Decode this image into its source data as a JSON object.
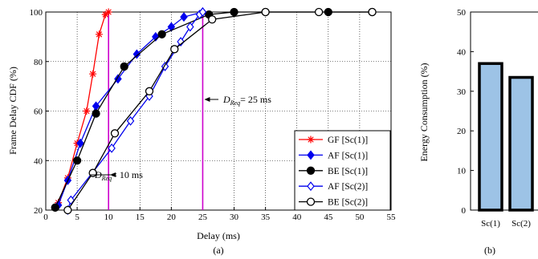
{
  "chart_data": [
    {
      "type": "line",
      "panel_label": "(a)",
      "xlabel": "Delay (ms)",
      "ylabel": "Frame Delay CDF (%)",
      "xlim": [
        0,
        55
      ],
      "ylim": [
        20,
        100
      ],
      "xticks": [
        "0",
        "5",
        "10",
        "15",
        "20",
        "25",
        "30",
        "35",
        "40",
        "45",
        "50",
        "55"
      ],
      "yticks": [
        "20",
        "40",
        "60",
        "80",
        "100"
      ],
      "grid": true,
      "legend_position": "bottom-right",
      "annotations": [
        {
          "prefix": "D",
          "sub": "Req",
          "text": "= 10 ms",
          "x": 10
        },
        {
          "prefix": "D",
          "sub": "Req",
          "text": "= 25 ms",
          "x": 25
        }
      ],
      "vlines": [
        {
          "x": 10,
          "color": "#cc00cc"
        },
        {
          "x": 25,
          "color": "#cc00cc"
        }
      ],
      "series": [
        {
          "name": "GF [Sc(1)]",
          "color": "#ff0000",
          "marker": "star",
          "filled": false,
          "x": [
            2,
            3.5,
            5,
            6.5,
            7.5,
            8.5,
            9.5,
            10
          ],
          "y": [
            23,
            33,
            47,
            60,
            75,
            91,
            99,
            100
          ]
        },
        {
          "name": "AF [Sc(1)]",
          "color": "#0000ee",
          "marker": "diamond",
          "filled": true,
          "x": [
            2,
            3.5,
            5.5,
            8,
            11.5,
            14.5,
            17.5,
            20,
            22,
            25
          ],
          "y": [
            22,
            32,
            47,
            62,
            73,
            83,
            90,
            94,
            98,
            100
          ]
        },
        {
          "name": "BE [Sc(1)]",
          "color": "#000000",
          "marker": "circle",
          "filled": true,
          "x": [
            1.5,
            5,
            8,
            12.5,
            18.5,
            26,
            30,
            35,
            45,
            52
          ],
          "y": [
            21,
            40,
            59,
            78,
            91,
            99,
            100,
            100,
            100,
            100
          ]
        },
        {
          "name": "AF [Sc(2)]",
          "color": "#0000ee",
          "marker": "diamond",
          "filled": false,
          "x": [
            3.5,
            4,
            10.5,
            13.5,
            16.5,
            19,
            21.5,
            23,
            24.5,
            25
          ],
          "y": [
            20,
            24,
            45,
            56,
            66,
            78,
            88,
            94,
            99,
            100
          ]
        },
        {
          "name": "BE [Sc(2)]",
          "color": "#000000",
          "marker": "circle",
          "filled": false,
          "x": [
            3.5,
            7.5,
            11,
            16.5,
            20.5,
            26.5,
            35,
            43.5,
            52
          ],
          "y": [
            20,
            35,
            51,
            68,
            85,
            97,
            100,
            100,
            100
          ]
        }
      ]
    },
    {
      "type": "bar",
      "panel_label": "(b)",
      "ylabel": "Energy Consumption (%)",
      "ylim": [
        0,
        50
      ],
      "yticks": [
        "0",
        "10",
        "20",
        "30",
        "40",
        "50"
      ],
      "grid": false,
      "categories": [
        "Sc(1)",
        "Sc(2)"
      ],
      "values": [
        37,
        33.5
      ],
      "bar_color": "#9dc3e6"
    }
  ]
}
